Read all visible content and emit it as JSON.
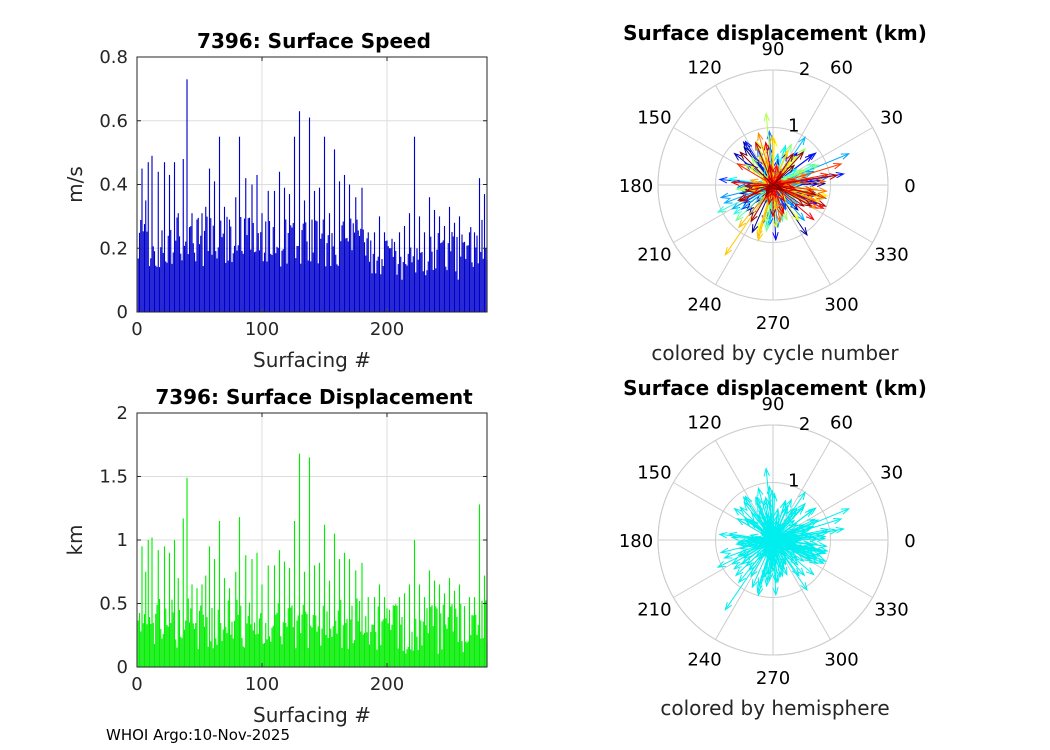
{
  "footer_text": "WHOI Argo:10-Nov-2025",
  "chart_data": [
    {
      "type": "bar",
      "title": "7396: Surface Speed",
      "xlabel": "Surfacing #",
      "ylabel": "m/s",
      "xlim": [
        0,
        280
      ],
      "ylim": [
        0,
        0.8
      ],
      "xticks": [
        "0",
        "100",
        "200"
      ],
      "yticks": [
        "0",
        "0.2",
        "0.4",
        "0.6",
        "0.8"
      ],
      "bar_color": "#0000cc",
      "grid": true,
      "n_bars": 280,
      "peaks": [
        [
          4,
          0.45
        ],
        [
          7,
          0.35
        ],
        [
          9,
          0.47
        ],
        [
          12,
          0.49
        ],
        [
          17,
          0.44
        ],
        [
          22,
          0.47
        ],
        [
          26,
          0.43
        ],
        [
          30,
          0.47
        ],
        [
          33,
          0.31
        ],
        [
          37,
          0.48
        ],
        [
          40,
          0.73
        ],
        [
          44,
          0.31
        ],
        [
          48,
          0.29
        ],
        [
          52,
          0.31
        ],
        [
          55,
          0.33
        ],
        [
          58,
          0.45
        ],
        [
          62,
          0.41
        ],
        [
          66,
          0.55
        ],
        [
          70,
          0.33
        ],
        [
          74,
          0.29
        ],
        [
          79,
          0.36
        ],
        [
          82,
          0.55
        ],
        [
          87,
          0.42
        ],
        [
          92,
          0.4
        ],
        [
          96,
          0.43
        ],
        [
          100,
          0.31
        ],
        [
          105,
          0.38
        ],
        [
          110,
          0.38
        ],
        [
          114,
          0.44
        ],
        [
          118,
          0.39
        ],
        [
          122,
          0.37
        ],
        [
          126,
          0.55
        ],
        [
          130,
          0.63
        ],
        [
          134,
          0.35
        ],
        [
          138,
          0.61
        ],
        [
          142,
          0.38
        ],
        [
          146,
          0.39
        ],
        [
          150,
          0.55
        ],
        [
          154,
          0.31
        ],
        [
          158,
          0.51
        ],
        [
          162,
          0.41
        ],
        [
          166,
          0.43
        ],
        [
          170,
          0.4
        ],
        [
          175,
          0.36
        ],
        [
          180,
          0.39
        ],
        [
          185,
          0.25
        ],
        [
          190,
          0.25
        ],
        [
          194,
          0.3
        ],
        [
          198,
          0.25
        ],
        [
          202,
          0.2
        ],
        [
          206,
          0.22
        ],
        [
          210,
          0.25
        ],
        [
          214,
          0.27
        ],
        [
          218,
          0.31
        ],
        [
          222,
          0.55
        ],
        [
          226,
          0.3
        ],
        [
          230,
          0.25
        ],
        [
          234,
          0.36
        ],
        [
          238,
          0.32
        ],
        [
          242,
          0.3
        ],
        [
          246,
          0.27
        ],
        [
          250,
          0.33
        ],
        [
          254,
          0.28
        ],
        [
          258,
          0.3
        ],
        [
          262,
          0.22
        ],
        [
          266,
          0.25
        ],
        [
          270,
          0.25
        ],
        [
          274,
          0.42
        ],
        [
          278,
          0.37
        ]
      ]
    },
    {
      "type": "polar",
      "title": "Surface displacement (km)",
      "caption": "colored by cycle number",
      "r_ticks": [
        "1",
        "2"
      ],
      "rlim": [
        0,
        2
      ],
      "angle_labels": [
        "0",
        "30",
        "60",
        "90",
        "120",
        "150",
        "180",
        "210",
        "240",
        "270",
        "300",
        "330"
      ],
      "color_mode": "cycle",
      "n_vectors": 280
    },
    {
      "type": "bar",
      "title": "7396: Surface Displacement",
      "xlabel": "Surfacing #",
      "ylabel": "km",
      "xlim": [
        0,
        280
      ],
      "ylim": [
        0,
        2
      ],
      "xticks": [
        "0",
        "100",
        "200"
      ],
      "yticks": [
        "0",
        "0.5",
        "1",
        "1.5",
        "2"
      ],
      "bar_color": "#00ee00",
      "grid": true,
      "n_bars": 280,
      "peaks": [
        [
          4,
          0.95
        ],
        [
          7,
          0.75
        ],
        [
          9,
          1.0
        ],
        [
          12,
          1.02
        ],
        [
          17,
          0.92
        ],
        [
          22,
          0.95
        ],
        [
          26,
          0.9
        ],
        [
          30,
          1.0
        ],
        [
          33,
          0.7
        ],
        [
          37,
          1.17
        ],
        [
          40,
          1.49
        ],
        [
          44,
          0.65
        ],
        [
          48,
          0.62
        ],
        [
          52,
          0.65
        ],
        [
          55,
          0.72
        ],
        [
          58,
          0.95
        ],
        [
          62,
          0.85
        ],
        [
          66,
          1.15
        ],
        [
          70,
          0.7
        ],
        [
          74,
          0.62
        ],
        [
          79,
          0.75
        ],
        [
          82,
          1.18
        ],
        [
          87,
          0.88
        ],
        [
          92,
          0.85
        ],
        [
          96,
          0.9
        ],
        [
          100,
          0.65
        ],
        [
          105,
          0.8
        ],
        [
          110,
          0.8
        ],
        [
          114,
          0.92
        ],
        [
          118,
          0.83
        ],
        [
          122,
          0.78
        ],
        [
          126,
          1.15
        ],
        [
          130,
          1.68
        ],
        [
          134,
          0.75
        ],
        [
          138,
          1.65
        ],
        [
          142,
          0.8
        ],
        [
          146,
          0.82
        ],
        [
          150,
          1.12
        ],
        [
          154,
          0.68
        ],
        [
          158,
          1.05
        ],
        [
          162,
          0.85
        ],
        [
          166,
          0.9
        ],
        [
          170,
          0.85
        ],
        [
          175,
          0.76
        ],
        [
          180,
          0.82
        ],
        [
          185,
          0.55
        ],
        [
          190,
          0.55
        ],
        [
          194,
          0.65
        ],
        [
          198,
          0.55
        ],
        [
          202,
          0.45
        ],
        [
          206,
          0.48
        ],
        [
          210,
          0.55
        ],
        [
          214,
          0.58
        ],
        [
          218,
          0.65
        ],
        [
          222,
          1.0
        ],
        [
          226,
          0.65
        ],
        [
          230,
          0.55
        ],
        [
          234,
          0.76
        ],
        [
          238,
          0.68
        ],
        [
          242,
          0.65
        ],
        [
          246,
          0.58
        ],
        [
          250,
          0.7
        ],
        [
          254,
          0.6
        ],
        [
          258,
          0.65
        ],
        [
          262,
          0.48
        ],
        [
          266,
          0.55
        ],
        [
          270,
          0.55
        ],
        [
          274,
          1.28
        ],
        [
          278,
          0.72
        ]
      ]
    },
    {
      "type": "polar",
      "title": "Surface displacement (km)",
      "caption": "colored by hemisphere",
      "r_ticks": [
        "1",
        "2"
      ],
      "rlim": [
        0,
        2
      ],
      "angle_labels": [
        "0",
        "30",
        "60",
        "90",
        "120",
        "150",
        "180",
        "210",
        "240",
        "270",
        "300",
        "330"
      ],
      "color_mode": "single",
      "vector_color": "#00eeee",
      "n_vectors": 280
    }
  ]
}
